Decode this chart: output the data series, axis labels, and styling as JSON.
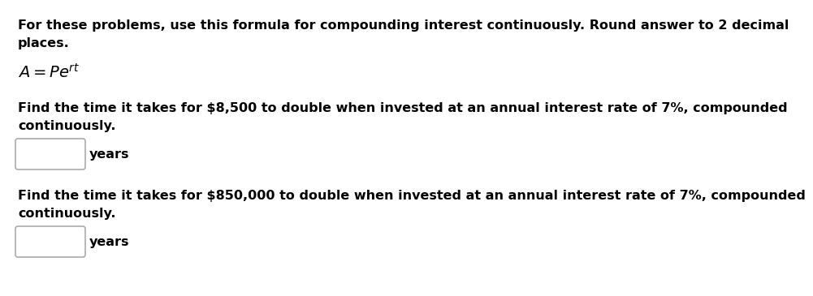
{
  "bg_color": "#ffffff",
  "text_color": "#000000",
  "box_edge_color": "#aaaaaa",
  "line1": "For these problems, use this formula for compounding interest continuously. Round answer to 2 decimal",
  "line2": "places.",
  "formula_text": "$A = Pe^{rt}$",
  "problem1_line1": "Find the time it takes for $8,500 to double when invested at an annual interest rate of 7%, compounded",
  "problem1_line2": "continuously.",
  "label1": "years",
  "problem2_line1": "Find the time it takes for $850,000 to double when invested at an annual interest rate of 7%, compounded",
  "problem2_line2": "continuously.",
  "label2": "years",
  "font_size_body": 11.5,
  "font_size_formula": 14,
  "font_size_label": 11.5
}
